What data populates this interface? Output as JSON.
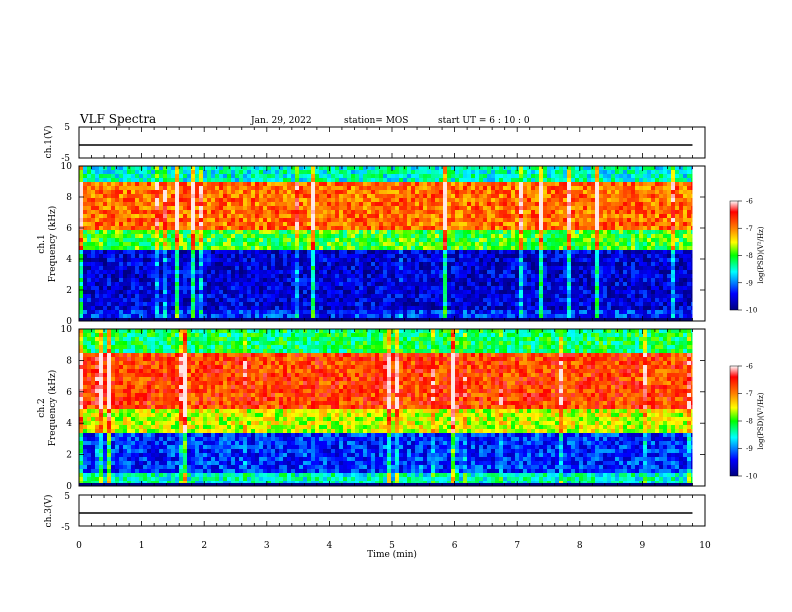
{
  "header": {
    "title": "VLF Spectra",
    "date": "Jan. 29, 2022",
    "station": "station= MOS",
    "start": "start  UT =   6 : 10 : 0"
  },
  "chart_data": [
    {
      "type": "line",
      "title": "",
      "ylabel": "ch.1(V)",
      "xlim": [
        0,
        10
      ],
      "ylim": [
        -5,
        5
      ],
      "yticks": [
        "5",
        "-5"
      ],
      "series": [
        {
          "values_x": [
            0,
            9.8
          ],
          "values_y": [
            -0.8,
            -0.8
          ]
        }
      ]
    },
    {
      "type": "heatmap",
      "ylabel_channel": "ch.1",
      "ylabel": "Frequency (kHz)",
      "xlim": [
        0,
        10
      ],
      "ylim": [
        0,
        10
      ],
      "yticks": [
        "0",
        "2",
        "4",
        "6",
        "8",
        "10"
      ],
      "data_end_x": 9.8,
      "bands": [
        {
          "from_khz": 0,
          "to_khz": 0.8,
          "log_psd": -9.3
        },
        {
          "from_khz": 0.8,
          "to_khz": 4.5,
          "log_psd": -9.6
        },
        {
          "from_khz": 4.5,
          "to_khz": 6,
          "log_psd": -8.0
        },
        {
          "from_khz": 6,
          "to_khz": 9,
          "log_psd": -6.9
        },
        {
          "from_khz": 9,
          "to_khz": 10,
          "log_psd": -8.5
        }
      ],
      "colorbar": {
        "label": "log(PSD)(V²/Hz)",
        "range": [
          -10,
          -6
        ],
        "ticks": [
          "-6",
          "-7",
          "-8",
          "-9",
          "-10"
        ]
      }
    },
    {
      "type": "heatmap",
      "ylabel_channel": "ch.2",
      "ylabel": "Frequency (kHz)",
      "xlim": [
        0,
        10
      ],
      "ylim": [
        0,
        10
      ],
      "yticks": [
        "0",
        "2",
        "4",
        "6",
        "8",
        "10"
      ],
      "data_end_x": 9.8,
      "bands": [
        {
          "from_khz": 0,
          "to_khz": 0.8,
          "log_psd": -8.5
        },
        {
          "from_khz": 0.8,
          "to_khz": 3.5,
          "log_psd": -9.3
        },
        {
          "from_khz": 3.5,
          "to_khz": 5,
          "log_psd": -7.6
        },
        {
          "from_khz": 5,
          "to_khz": 8.5,
          "log_psd": -6.7
        },
        {
          "from_khz": 8.5,
          "to_khz": 10,
          "log_psd": -8.2
        }
      ],
      "colorbar": {
        "label": "log(PSD)(V²/Hz)",
        "range": [
          -10,
          -6
        ],
        "ticks": [
          "-6",
          "-7",
          "-8",
          "-9",
          "-10"
        ]
      }
    },
    {
      "type": "line",
      "title": "",
      "ylabel": "ch.3(V)",
      "xlim": [
        0,
        10
      ],
      "ylim": [
        -5,
        5
      ],
      "yticks": [
        "5",
        "-5"
      ],
      "series": [
        {
          "values_x": [
            0,
            9.8
          ],
          "values_y": [
            -0.8,
            -0.8
          ]
        }
      ]
    }
  ],
  "x_axis": {
    "label": "Time (min)",
    "ticks": [
      "0",
      "1",
      "2",
      "3",
      "4",
      "5",
      "6",
      "7",
      "8",
      "9",
      "10"
    ]
  },
  "colors": {
    "palette": [
      "#00007f",
      "#0000ff",
      "#00ffff",
      "#7fff00",
      "#ffff00",
      "#ff7f00",
      "#ff0000",
      "#ffffff"
    ]
  }
}
